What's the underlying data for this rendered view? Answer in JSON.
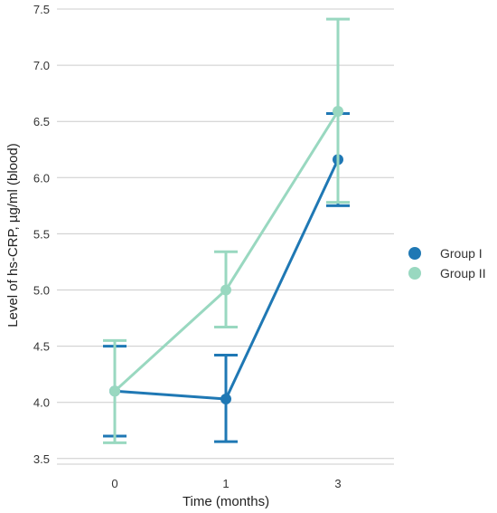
{
  "chart_data": {
    "type": "line",
    "title": "",
    "xlabel": "Time (months)",
    "ylabel": "Level of hs-CRP, µg/ml (blood)",
    "categories": [
      "0",
      "1",
      "3"
    ],
    "ylim": [
      3.45,
      7.5
    ],
    "yticks": [
      "3.5",
      "4.0",
      "4.5",
      "5.0",
      "5.5",
      "6.0",
      "6.5",
      "7.0",
      "7.5"
    ],
    "grid": true,
    "legend": "right",
    "series": [
      {
        "name": "Group I",
        "color": "#1f78b4",
        "values": [
          4.1,
          4.03,
          6.16
        ],
        "err_low": [
          3.7,
          3.65,
          5.75
        ],
        "err_high": [
          4.5,
          4.42,
          6.57
        ]
      },
      {
        "name": "Group II",
        "color": "#99d8c0",
        "values": [
          4.1,
          5.0,
          6.59
        ],
        "err_low": [
          3.64,
          4.67,
          5.78
        ],
        "err_high": [
          4.55,
          5.34,
          7.41
        ]
      }
    ]
  }
}
